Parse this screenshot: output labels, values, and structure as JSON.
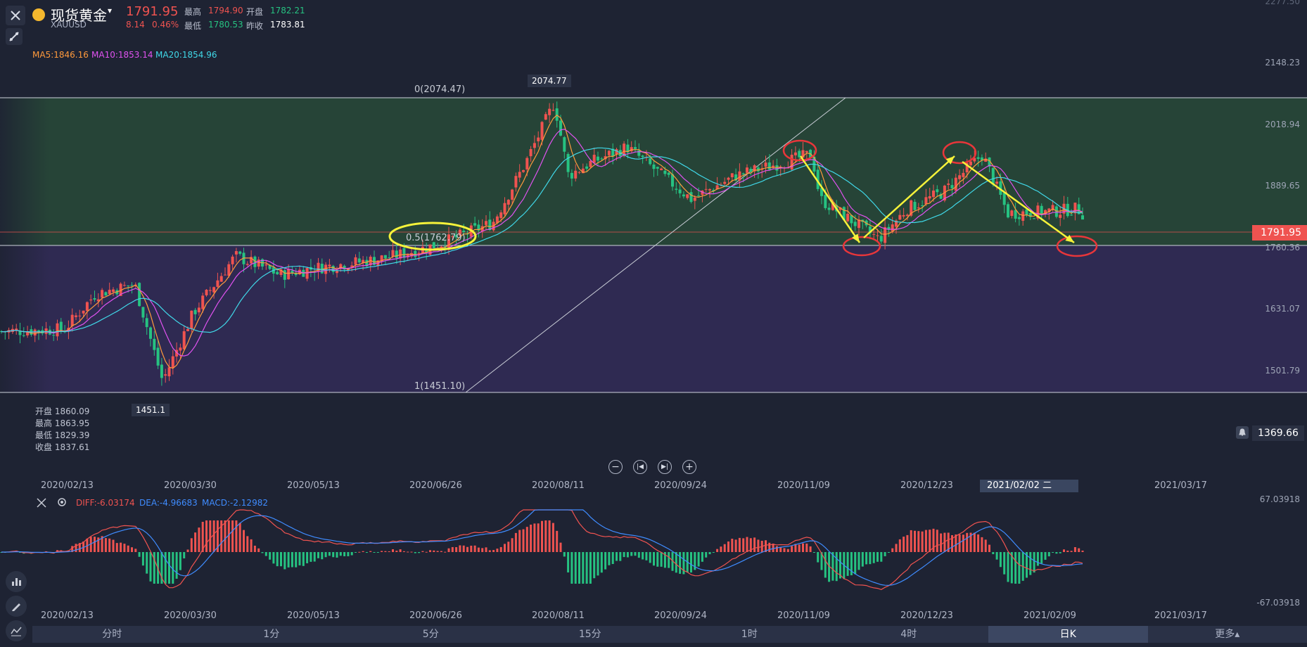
{
  "header": {
    "name": "现货黄金",
    "symbol": "XAUUSD",
    "price": "1791.95",
    "change": "8.14",
    "change_pct": "0.46%",
    "high_label": "最高",
    "high": "1794.90",
    "open_label": "开盘",
    "open": "1782.21",
    "low_label": "最低",
    "low": "1780.53",
    "prev_label": "昨收",
    "prev": "1783.81"
  },
  "ma": {
    "ma5": "MA5:1846.16",
    "ma10": "MA10:1853.14",
    "ma20": "MA20:1854.96"
  },
  "ohlc_panel": {
    "open": "开盘 1860.09",
    "high": "最高 1863.95",
    "low": "最低 1829.39",
    "close": "收盘 1837.61"
  },
  "price_axis": [
    "2277.50",
    "2148.23",
    "2018.94",
    "1889.65",
    "1760.36",
    "1631.07",
    "1501.79"
  ],
  "current_price_tag": "1791.95",
  "alert_value": "1369.66",
  "fib": {
    "level0": "0(2074.47)",
    "level05": "0.5(1762.79)",
    "level1": "1(1451.10)"
  },
  "peak_label": "2074.77",
  "trough_label": "1451.1",
  "date_axis": [
    "2020/02/13",
    "2020/03/30",
    "2020/05/13",
    "2020/06/26",
    "2020/08/11",
    "2020/09/24",
    "2020/11/09",
    "2020/12/23",
    "2021/03/17"
  ],
  "date_highlight": "2021/02/02 二",
  "macd": {
    "diff": "DIFF:-6.03174",
    "dea": "DEA:-4.96683",
    "macd": "MACD:-2.12982",
    "top": "67.03918",
    "bottom": "-67.03918"
  },
  "macd_dates": [
    "2020/02/13",
    "2020/03/30",
    "2020/05/13",
    "2020/06/26",
    "2020/08/11",
    "2020/09/24",
    "2020/11/09",
    "2020/12/23",
    "2021/02/09",
    "2021/03/17"
  ],
  "tabs": [
    "分时",
    "1分",
    "5分",
    "15分",
    "1时",
    "4时",
    "日K",
    "更多▴"
  ],
  "active_tab": "日K",
  "colors": {
    "up": "#ef5350",
    "down": "#26c281",
    "ma5": "#ff9a3c",
    "ma10": "#e052f0",
    "ma20": "#40d8e8",
    "annotation_yellow": "#f5f23a",
    "annotation_red": "#e8363a",
    "band_upper": "#264437",
    "band_lower": "#2f2a52"
  },
  "chart_data": {
    "type": "candlestick",
    "y_axis_ticks": [
      1501.79,
      1631.07,
      1760.36,
      1889.65,
      2018.94,
      2148.23,
      2277.5
    ],
    "fib_levels": [
      2074.47,
      1762.79,
      1451.1
    ],
    "high_marker": 2074.77,
    "low_marker": 1451.1,
    "last_close": 1791.95,
    "close_path": [
      [
        "2020/02/13",
        1585
      ],
      [
        "2020/02/24",
        1660
      ],
      [
        "2020/03/09",
        1680
      ],
      [
        "2020/03/19",
        1475
      ],
      [
        "2020/03/30",
        1620
      ],
      [
        "2020/04/14",
        1740
      ],
      [
        "2020/04/30",
        1700
      ],
      [
        "2020/05/13",
        1715
      ],
      [
        "2020/06/01",
        1730
      ],
      [
        "2020/06/10",
        1740
      ],
      [
        "2020/06/26",
        1765
      ],
      [
        "2020/07/15",
        1810
      ],
      [
        "2020/07/27",
        1940
      ],
      [
        "2020/08/06",
        2065
      ],
      [
        "2020/08/11",
        1910
      ],
      [
        "2020/08/20",
        1940
      ],
      [
        "2020/09/01",
        1970
      ],
      [
        "2020/09/24",
        1860
      ],
      [
        "2020/10/10",
        1910
      ],
      [
        "2020/11/09",
        1860
      ],
      [
        "2020/11/06",
        1955
      ],
      [
        "2020/11/30",
        1775
      ],
      [
        "2020/12/10",
        1840
      ],
      [
        "2020/12/23",
        1875
      ],
      [
        "2021/01/06",
        1955
      ],
      [
        "2021/01/15",
        1830
      ],
      [
        "2021/02/02",
        1835
      ],
      [
        "2021/02/09",
        1840
      ],
      [
        "2021/02/19",
        1785
      ]
    ],
    "macd_series": {
      "diff_last": -6.03174,
      "dea_last": -4.96683,
      "macd_last": -2.12982,
      "range": [
        -67.03918,
        67.03918
      ]
    }
  }
}
